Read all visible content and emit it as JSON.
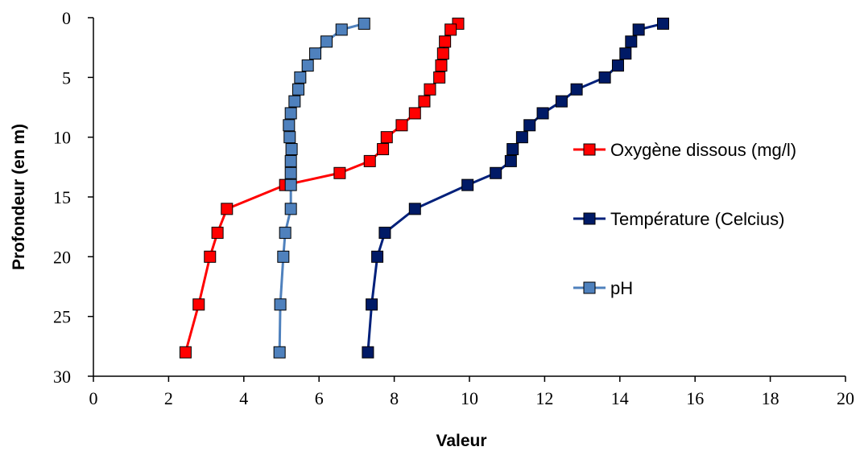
{
  "chart_data": {
    "type": "scatter",
    "title": "",
    "xlabel": "Valeur",
    "ylabel": "Profondeur (en m)",
    "xlim": [
      0,
      20
    ],
    "ylim": [
      0,
      30
    ],
    "y_inverted": true,
    "x_ticks": [
      "0",
      "2",
      "4",
      "6",
      "8",
      "10",
      "12",
      "14",
      "16",
      "18",
      "20"
    ],
    "y_ticks": [
      "0",
      "5",
      "10",
      "15",
      "20",
      "25",
      "30"
    ],
    "grid": false,
    "legend_position": "right",
    "series": [
      {
        "name": "Oxygène dissous (mg/l)",
        "color": "#ff0000",
        "marker_color": "#ff0000",
        "marker": "square",
        "points": [
          {
            "x": 9.7,
            "y": 0.5
          },
          {
            "x": 9.5,
            "y": 1
          },
          {
            "x": 9.35,
            "y": 2
          },
          {
            "x": 9.3,
            "y": 3
          },
          {
            "x": 9.25,
            "y": 4
          },
          {
            "x": 9.2,
            "y": 5
          },
          {
            "x": 8.95,
            "y": 6
          },
          {
            "x": 8.8,
            "y": 7
          },
          {
            "x": 8.55,
            "y": 8
          },
          {
            "x": 8.2,
            "y": 9
          },
          {
            "x": 7.8,
            "y": 10
          },
          {
            "x": 7.7,
            "y": 11
          },
          {
            "x": 7.35,
            "y": 12
          },
          {
            "x": 6.55,
            "y": 13
          },
          {
            "x": 5.1,
            "y": 14
          },
          {
            "x": 3.55,
            "y": 16
          },
          {
            "x": 3.3,
            "y": 18
          },
          {
            "x": 3.1,
            "y": 20
          },
          {
            "x": 2.8,
            "y": 24
          },
          {
            "x": 2.45,
            "y": 28
          }
        ]
      },
      {
        "name": "Température (Celcius)",
        "color": "#00207a",
        "marker_color": "#001a66",
        "marker": "square",
        "points": [
          {
            "x": 15.15,
            "y": 0.5
          },
          {
            "x": 14.5,
            "y": 1
          },
          {
            "x": 14.3,
            "y": 2
          },
          {
            "x": 14.15,
            "y": 3
          },
          {
            "x": 13.95,
            "y": 4
          },
          {
            "x": 13.6,
            "y": 5
          },
          {
            "x": 12.85,
            "y": 6
          },
          {
            "x": 12.45,
            "y": 7
          },
          {
            "x": 11.95,
            "y": 8
          },
          {
            "x": 11.6,
            "y": 9
          },
          {
            "x": 11.4,
            "y": 10
          },
          {
            "x": 11.15,
            "y": 11
          },
          {
            "x": 11.1,
            "y": 12
          },
          {
            "x": 10.7,
            "y": 13
          },
          {
            "x": 9.95,
            "y": 14
          },
          {
            "x": 8.55,
            "y": 16
          },
          {
            "x": 7.75,
            "y": 18
          },
          {
            "x": 7.55,
            "y": 20
          },
          {
            "x": 7.4,
            "y": 24
          },
          {
            "x": 7.3,
            "y": 28
          }
        ]
      },
      {
        "name": "pH",
        "color": "#4f81bd",
        "marker_color": "#4f81bd",
        "marker": "square",
        "points": [
          {
            "x": 7.2,
            "y": 0.5
          },
          {
            "x": 6.6,
            "y": 1
          },
          {
            "x": 6.2,
            "y": 2
          },
          {
            "x": 5.9,
            "y": 3
          },
          {
            "x": 5.7,
            "y": 4
          },
          {
            "x": 5.5,
            "y": 5
          },
          {
            "x": 5.45,
            "y": 6
          },
          {
            "x": 5.35,
            "y": 7
          },
          {
            "x": 5.25,
            "y": 8
          },
          {
            "x": 5.2,
            "y": 9
          },
          {
            "x": 5.22,
            "y": 10
          },
          {
            "x": 5.27,
            "y": 11
          },
          {
            "x": 5.25,
            "y": 12
          },
          {
            "x": 5.25,
            "y": 13
          },
          {
            "x": 5.25,
            "y": 14
          },
          {
            "x": 5.25,
            "y": 16
          },
          {
            "x": 5.1,
            "y": 18
          },
          {
            "x": 5.05,
            "y": 20
          },
          {
            "x": 4.97,
            "y": 24
          },
          {
            "x": 4.95,
            "y": 28
          }
        ]
      }
    ]
  }
}
